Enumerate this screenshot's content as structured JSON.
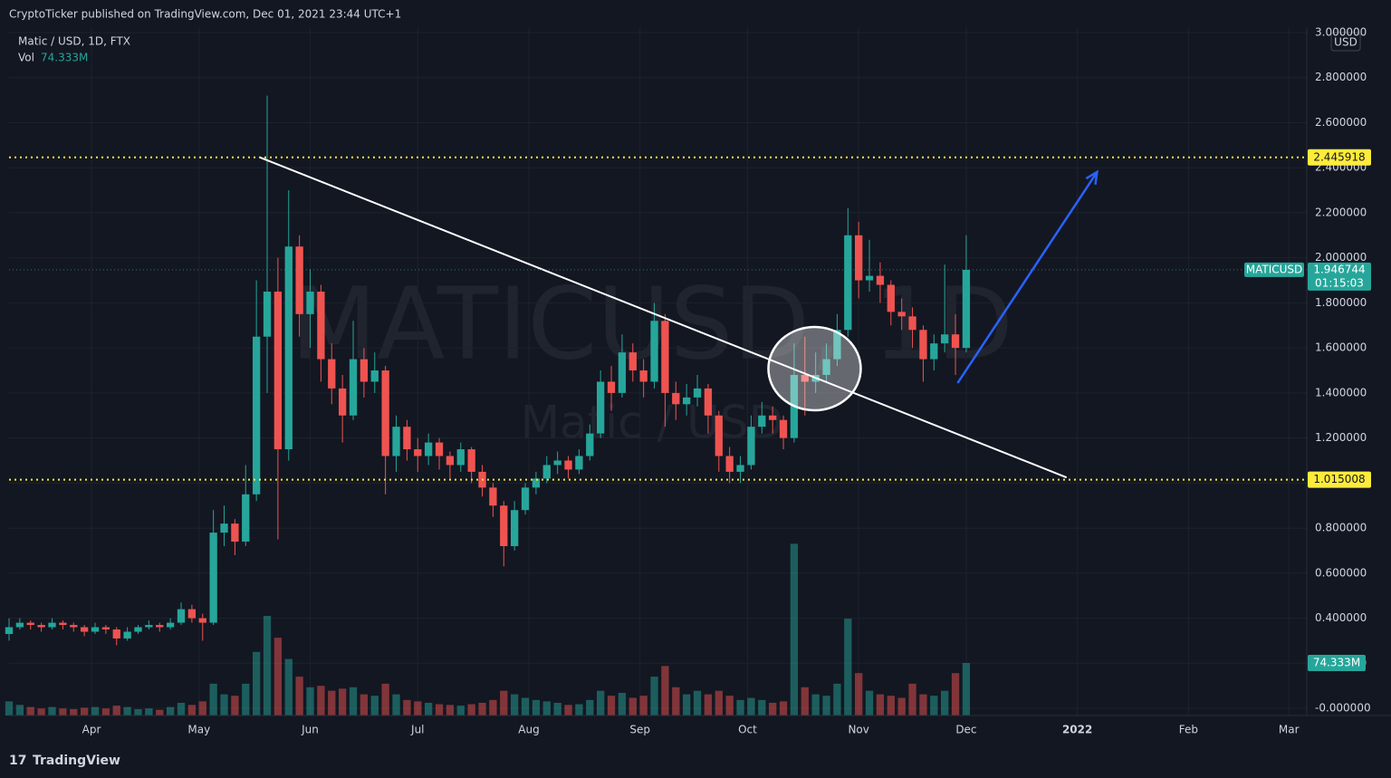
{
  "header": {
    "publisher": "CryptoTicker published on TradingView.com, Dec 01, 2021 23:44 UTC+1",
    "brand": "TradingView"
  },
  "chart_data": {
    "type": "candlestick",
    "title": "Matic / USD, 1D, FTX",
    "watermark": "MATICUSD, 1D",
    "watermark_sub": "Matic / USD",
    "symbol": "MATICUSD",
    "currency": "USD",
    "countdown": "01:15:03",
    "last_price": 1.946744,
    "up_color": "#26a69a",
    "down_color": "#ef5350",
    "grid": true,
    "x": [
      0,
      3,
      6,
      9,
      12,
      15,
      18,
      21,
      24,
      27,
      30,
      33,
      36,
      39,
      42,
      45,
      48,
      51,
      54,
      57,
      60,
      63,
      66,
      69,
      72,
      75,
      78,
      81,
      84,
      87,
      90,
      93,
      96,
      99,
      102,
      105,
      108,
      111,
      114,
      117,
      120,
      123,
      126,
      129,
      132,
      135,
      138,
      141,
      144,
      147,
      150,
      153,
      156,
      159,
      162,
      165,
      168,
      171,
      174,
      177,
      180,
      183,
      186,
      189,
      192,
      195,
      198,
      201,
      204,
      207,
      210,
      213,
      216,
      219,
      222,
      225,
      228,
      231,
      234,
      237,
      240,
      243,
      246,
      249,
      252,
      255,
      258,
      261,
      264,
      267
    ],
    "open": [
      0.33,
      0.36,
      0.38,
      0.37,
      0.36,
      0.38,
      0.37,
      0.36,
      0.34,
      0.36,
      0.35,
      0.31,
      0.34,
      0.36,
      0.37,
      0.36,
      0.38,
      0.44,
      0.4,
      0.38,
      0.78,
      0.82,
      0.74,
      0.95,
      1.65,
      1.85,
      1.15,
      2.05,
      1.75,
      1.85,
      1.55,
      1.42,
      1.3,
      1.55,
      1.45,
      1.5,
      1.12,
      1.25,
      1.15,
      1.12,
      1.18,
      1.12,
      1.08,
      1.15,
      1.05,
      0.98,
      0.9,
      0.72,
      0.88,
      0.98,
      1.02,
      1.08,
      1.1,
      1.06,
      1.12,
      1.22,
      1.45,
      1.4,
      1.58,
      1.5,
      1.45,
      1.72,
      1.4,
      1.35,
      1.38,
      1.42,
      1.3,
      1.12,
      1.05,
      1.08,
      1.25,
      1.3,
      1.28,
      1.2,
      1.48,
      1.45,
      1.48,
      1.55,
      1.68,
      2.1,
      1.9,
      1.92,
      1.88,
      1.76,
      1.74,
      1.68,
      1.55,
      1.62,
      1.66,
      1.6
    ],
    "high": [
      0.4,
      0.4,
      0.39,
      0.38,
      0.4,
      0.39,
      0.38,
      0.37,
      0.38,
      0.37,
      0.36,
      0.36,
      0.37,
      0.39,
      0.38,
      0.4,
      0.47,
      0.46,
      0.42,
      0.88,
      0.9,
      0.84,
      1.08,
      1.9,
      2.72,
      2.0,
      2.3,
      2.1,
      1.95,
      1.88,
      1.62,
      1.48,
      1.72,
      1.6,
      1.58,
      1.52,
      1.3,
      1.28,
      1.2,
      1.22,
      1.2,
      1.14,
      1.18,
      1.16,
      1.08,
      1.0,
      0.92,
      0.92,
      1.0,
      1.05,
      1.12,
      1.14,
      1.12,
      1.15,
      1.26,
      1.5,
      1.52,
      1.66,
      1.62,
      1.55,
      1.8,
      1.75,
      1.45,
      1.44,
      1.48,
      1.44,
      1.32,
      1.16,
      1.12,
      1.3,
      1.36,
      1.34,
      1.3,
      1.62,
      1.65,
      1.58,
      1.62,
      1.75,
      2.22,
      2.16,
      2.08,
      1.98,
      1.9,
      1.82,
      1.78,
      1.7,
      1.66,
      1.97,
      1.75,
      2.1
    ],
    "low": [
      0.3,
      0.35,
      0.35,
      0.34,
      0.35,
      0.35,
      0.34,
      0.32,
      0.33,
      0.33,
      0.28,
      0.3,
      0.33,
      0.35,
      0.34,
      0.35,
      0.37,
      0.38,
      0.3,
      0.37,
      0.72,
      0.68,
      0.72,
      0.92,
      1.4,
      0.75,
      1.1,
      1.65,
      1.6,
      1.45,
      1.35,
      1.18,
      1.28,
      1.38,
      1.4,
      0.95,
      1.05,
      1.1,
      1.05,
      1.08,
      1.06,
      1.02,
      1.05,
      1.0,
      0.94,
      0.85,
      0.63,
      0.7,
      0.86,
      0.95,
      1.0,
      1.04,
      1.02,
      1.04,
      1.1,
      1.2,
      1.32,
      1.38,
      1.45,
      1.38,
      1.42,
      1.25,
      1.28,
      1.3,
      1.34,
      1.22,
      1.05,
      1.0,
      1.0,
      1.06,
      1.22,
      1.22,
      1.15,
      1.18,
      1.3,
      1.4,
      1.45,
      1.52,
      1.65,
      1.82,
      1.85,
      1.8,
      1.7,
      1.68,
      1.6,
      1.45,
      1.5,
      1.58,
      1.48,
      1.58
    ],
    "close": [
      0.36,
      0.38,
      0.37,
      0.36,
      0.38,
      0.37,
      0.36,
      0.34,
      0.36,
      0.35,
      0.31,
      0.34,
      0.36,
      0.37,
      0.36,
      0.38,
      0.44,
      0.4,
      0.38,
      0.78,
      0.82,
      0.74,
      0.95,
      1.65,
      1.85,
      1.15,
      2.05,
      1.75,
      1.85,
      1.55,
      1.42,
      1.3,
      1.55,
      1.45,
      1.5,
      1.12,
      1.25,
      1.15,
      1.12,
      1.18,
      1.12,
      1.08,
      1.15,
      1.05,
      0.98,
      0.9,
      0.72,
      0.88,
      0.98,
      1.02,
      1.08,
      1.1,
      1.06,
      1.12,
      1.22,
      1.45,
      1.4,
      1.58,
      1.5,
      1.45,
      1.72,
      1.4,
      1.35,
      1.38,
      1.42,
      1.3,
      1.12,
      1.05,
      1.08,
      1.25,
      1.3,
      1.28,
      1.2,
      1.48,
      1.45,
      1.48,
      1.55,
      1.68,
      2.1,
      1.9,
      1.92,
      1.88,
      1.76,
      1.74,
      1.68,
      1.55,
      1.62,
      1.66,
      1.6,
      1.946744
    ],
    "volume": {
      "name": "Vol",
      "axis": "y2",
      "last_label": "74.333M",
      "values": [
        20,
        15,
        12,
        10,
        12,
        10,
        9,
        11,
        12,
        10,
        14,
        12,
        9,
        10,
        8,
        12,
        18,
        15,
        20,
        45,
        30,
        28,
        45,
        90,
        141,
        110,
        80,
        55,
        40,
        42,
        35,
        38,
        40,
        30,
        28,
        45,
        30,
        22,
        20,
        18,
        16,
        15,
        14,
        16,
        18,
        22,
        35,
        30,
        25,
        22,
        20,
        18,
        15,
        16,
        22,
        35,
        28,
        32,
        25,
        28,
        55,
        70,
        40,
        30,
        35,
        30,
        35,
        28,
        22,
        25,
        22,
        18,
        20,
        243,
        40,
        30,
        28,
        45,
        137,
        60,
        35,
        30,
        28,
        25,
        45,
        30,
        28,
        35,
        60,
        74.333
      ]
    },
    "xlim": [
      0,
      362
    ],
    "xticks": [
      {
        "value": 23,
        "label": "Apr"
      },
      {
        "value": 53,
        "label": "May"
      },
      {
        "value": 84,
        "label": "Jun"
      },
      {
        "value": 114,
        "label": "Jul"
      },
      {
        "value": 145,
        "label": "Aug"
      },
      {
        "value": 176,
        "label": "Sep"
      },
      {
        "value": 206,
        "label": "Oct"
      },
      {
        "value": 237,
        "label": "Nov"
      },
      {
        "value": 267,
        "label": "Dec"
      },
      {
        "value": 298,
        "label": "2022"
      },
      {
        "value": 329,
        "label": "Feb"
      },
      {
        "value": 357,
        "label": "Mar"
      }
    ],
    "ylim": [
      -0.032,
      3.024
    ],
    "y2lim": [
      0,
      974
    ],
    "yticks": [
      {
        "value": 0,
        "label": "-0.000000"
      },
      {
        "value": 0.2,
        "label": "0.200000"
      },
      {
        "value": 0.4,
        "label": "0.400000"
      },
      {
        "value": 0.6,
        "label": "0.600000"
      },
      {
        "value": 0.8,
        "label": "0.800000"
      },
      {
        "value": 1,
        "label": "1.000000"
      },
      {
        "value": 1.2,
        "label": "1.200000"
      },
      {
        "value": 1.4,
        "label": "1.400000"
      },
      {
        "value": 1.6,
        "label": "1.600000"
      },
      {
        "value": 1.8,
        "label": "1.800000"
      },
      {
        "value": 2,
        "label": "2.000000"
      },
      {
        "value": 2.2,
        "label": "2.200000"
      },
      {
        "value": 2.4,
        "label": "2.400000"
      },
      {
        "value": 2.6,
        "label": "2.600000"
      },
      {
        "value": 2.8,
        "label": "2.800000"
      },
      {
        "value": 3,
        "label": "3.000000"
      }
    ],
    "levels": [
      2.445918,
      1.015008
    ],
    "level_color": "#ffeb3b",
    "trendline": {
      "x": [
        70,
        295
      ],
      "y": [
        2.445918,
        1.025
      ],
      "color": "#ffffff"
    },
    "arrow": {
      "x": [
        264.6,
        303.5
      ],
      "y": [
        1.444,
        2.381
      ],
      "color": "#2962ff"
    },
    "ellipse": {
      "x": 224.7,
      "y": 1.508,
      "color": "#ffffff"
    }
  }
}
